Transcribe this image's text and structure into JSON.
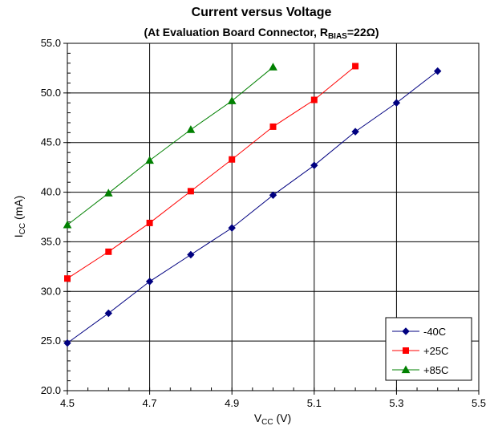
{
  "chart_data": {
    "type": "line",
    "title": "Current versus Voltage",
    "subtitle": {
      "prefix": "(At Evaluation Board Connector, R",
      "sub": "BIAS",
      "suffix": "=22Ω)"
    },
    "xlabel": {
      "main": "V",
      "sub": "CC",
      "unit": " (V)"
    },
    "ylabel": {
      "main": "I",
      "sub": "CC",
      "unit": " (mA)"
    },
    "xlim": [
      4.5,
      5.5
    ],
    "ylim": [
      20.0,
      55.0
    ],
    "x_ticks": [
      "4.5",
      "4.7",
      "4.9",
      "5.1",
      "5.3",
      "5.5"
    ],
    "y_ticks": [
      "20.0",
      "25.0",
      "30.0",
      "35.0",
      "40.0",
      "45.0",
      "50.0",
      "55.0"
    ],
    "grid": true,
    "legend_position": "bottom-right",
    "series": [
      {
        "name": "-40C",
        "color": "#000080",
        "marker": "diamond",
        "x": [
          4.5,
          4.6,
          4.7,
          4.8,
          4.9,
          5.0,
          5.1,
          5.2,
          5.3,
          5.4
        ],
        "y": [
          24.8,
          27.8,
          31.0,
          33.7,
          36.4,
          39.7,
          42.7,
          46.1,
          49.0,
          52.2
        ]
      },
      {
        "name": "+25C",
        "color": "#ff0000",
        "marker": "square",
        "x": [
          4.5,
          4.6,
          4.7,
          4.8,
          4.9,
          5.0,
          5.1,
          5.2
        ],
        "y": [
          31.3,
          34.0,
          36.9,
          40.1,
          43.3,
          46.6,
          49.3,
          52.7
        ]
      },
      {
        "name": "+85C",
        "color": "#008000",
        "marker": "triangle",
        "x": [
          4.5,
          4.6,
          4.7,
          4.8,
          4.9,
          5.0
        ],
        "y": [
          36.7,
          39.9,
          43.2,
          46.3,
          49.2,
          52.6
        ]
      }
    ]
  }
}
